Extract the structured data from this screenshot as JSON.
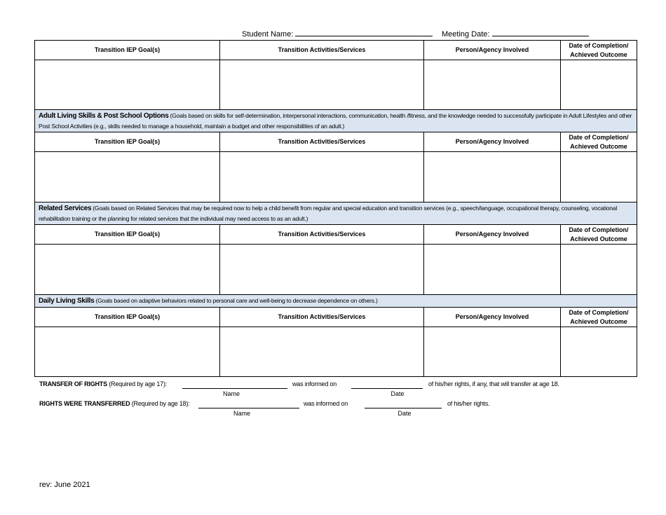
{
  "header": {
    "student_name_label": "Student Name:",
    "meeting_date_label": "Meeting Date:"
  },
  "columns": [
    "Transition IEP Goal(s)",
    "Transition Activities/Services",
    "Person/Agency Involved",
    "Date of Completion/ Achieved Outcome"
  ],
  "sections": [
    {
      "title": "",
      "description": ""
    },
    {
      "title": "Adult Living Skills & Post School Options",
      "description": "(Goals based on skills for self-determination, interpersonal interactions, communication, health /fitness, and the knowledge needed to successfully participate in Adult Lifestyles and other Post School Activities (e.g., skills needed to manage a household, maintain a budget and other responsibilities of an adult.)"
    },
    {
      "title": "Related Services",
      "description": "(Goals based on Related Services that may be required now to help a child benefit from regular and special education and transition services (e.g., speech/language, occupational therapy, counseling, vocational rehabilitation training or the planning for related services that the individual may need access to as an adult.)"
    },
    {
      "title": "Daily Living Skills",
      "description": "(Goals based on adaptive behaviors related to personal care and well-being to decrease dependence on others.)"
    }
  ],
  "rights": {
    "transfer_title": "TRANSFER OF RIGHTS",
    "transfer_req": "(Required by age 17):",
    "informed_on": "was informed on",
    "transfer_tail": "of his/her rights, if any, that will transfer at age 18.",
    "transferred_title": "RIGHTS WERE TRANSFERRED",
    "transferred_req": "(Required by age 18):",
    "transferred_tail": "of his/her rights.",
    "name_label": "Name",
    "date_label": "Date"
  },
  "footer": {
    "revision": "rev: June 2021"
  }
}
